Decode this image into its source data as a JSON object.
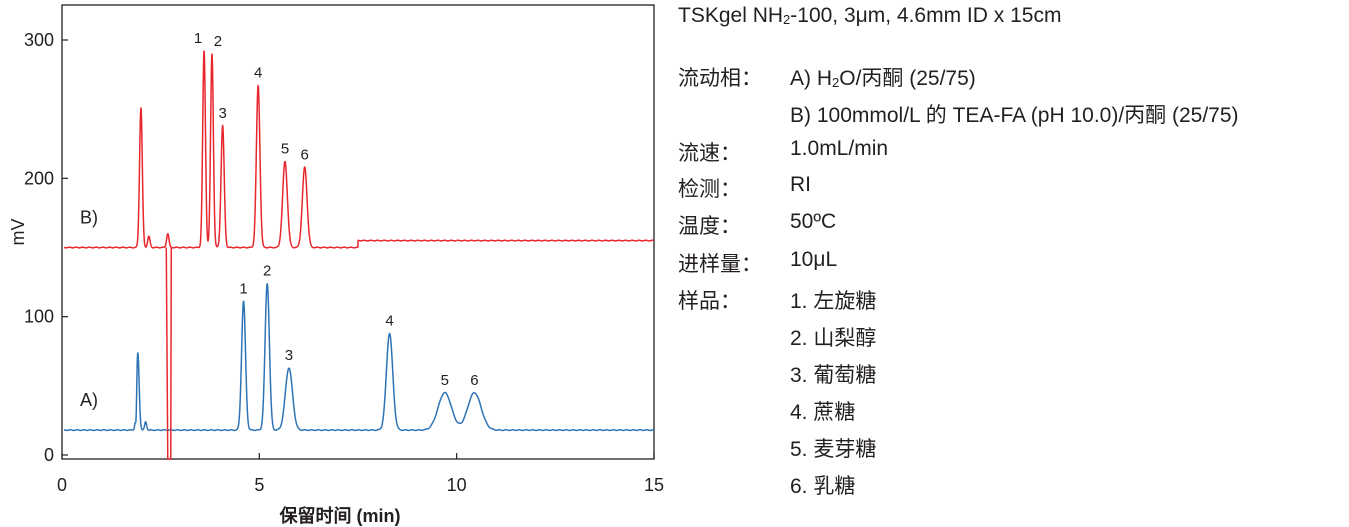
{
  "chart_data": {
    "type": "line",
    "xlabel": "保留时间 (min)",
    "ylabel": "mV",
    "xlim": [
      0,
      15
    ],
    "ylim": [
      0,
      300
    ],
    "x_ticks": [
      "0",
      "5",
      "10",
      "15"
    ],
    "y_ticks": [
      "0",
      "100",
      "200",
      "300"
    ],
    "grid": false,
    "series": [
      {
        "name": "A)",
        "color": "#2e74b5",
        "baseline": 18,
        "system_peaks": [
          {
            "t": 1.92,
            "h": 74,
            "w": 0.035
          },
          {
            "t": 2.12,
            "h": 24,
            "w": 0.025
          }
        ],
        "dip": {
          "t": 1.88,
          "depth": 18,
          "w": 0.015
        },
        "peaks": [
          {
            "label": "1",
            "t": 4.6,
            "h": 111,
            "w": 0.05
          },
          {
            "label": "2",
            "t": 5.2,
            "h": 124,
            "w": 0.055
          },
          {
            "label": "3",
            "t": 5.75,
            "h": 63,
            "w": 0.09
          },
          {
            "label": "4",
            "t": 8.3,
            "h": 88,
            "w": 0.08
          },
          {
            "label": "5",
            "t": 9.7,
            "h": 45,
            "w": 0.17
          },
          {
            "label": "6",
            "t": 10.45,
            "h": 45,
            "w": 0.17
          }
        ]
      },
      {
        "name": "B)",
        "color": "#e8262b",
        "baseline": 150,
        "step_after": 7.5,
        "baseline_after": 155,
        "system_peaks": [
          {
            "t": 2.0,
            "h": 251,
            "w": 0.035
          },
          {
            "t": 2.2,
            "h": 158,
            "w": 0.03
          }
        ],
        "dip": {
          "t": 2.68,
          "depth": -10,
          "w": 0.03
        },
        "peaks": [
          {
            "label": "1",
            "t": 3.6,
            "h": 292,
            "w": 0.035
          },
          {
            "label": "2",
            "t": 3.8,
            "h": 290,
            "w": 0.035
          },
          {
            "label": "3",
            "t": 4.07,
            "h": 238,
            "w": 0.04
          },
          {
            "label": "4",
            "t": 4.97,
            "h": 267,
            "w": 0.045
          },
          {
            "label": "5",
            "t": 5.65,
            "h": 212,
            "w": 0.06
          },
          {
            "label": "6",
            "t": 6.15,
            "h": 208,
            "w": 0.06
          }
        ]
      }
    ]
  },
  "conditions": {
    "column_pre": "TSKgel NH",
    "column_sub": "2",
    "column_post": "-100, 3μm, 4.6mm ID x 15cm",
    "mobile_phase_label": "流动相：",
    "mobile_phase_a_pre": "A) H",
    "mobile_phase_a_sub": "2",
    "mobile_phase_a_post": "O/丙酮 (25/75)",
    "mobile_phase_b": "B) 100mmol/L 的 TEA-FA (pH 10.0)/丙酮 (25/75)",
    "flow_label": "流速：",
    "flow_value": "1.0mL/min",
    "detection_label": "检测：",
    "detection_value": "RI",
    "temperature_label": "温度：",
    "temperature_value": "50ºC",
    "injection_label": "进样量：",
    "injection_value": "10μL",
    "sample_label": "样品：",
    "samples": [
      "1. 左旋糖",
      "2. 山梨醇",
      "3. 葡萄糖",
      "4. 蔗糖",
      "5. 麦芽糖",
      "6. 乳糖"
    ]
  }
}
